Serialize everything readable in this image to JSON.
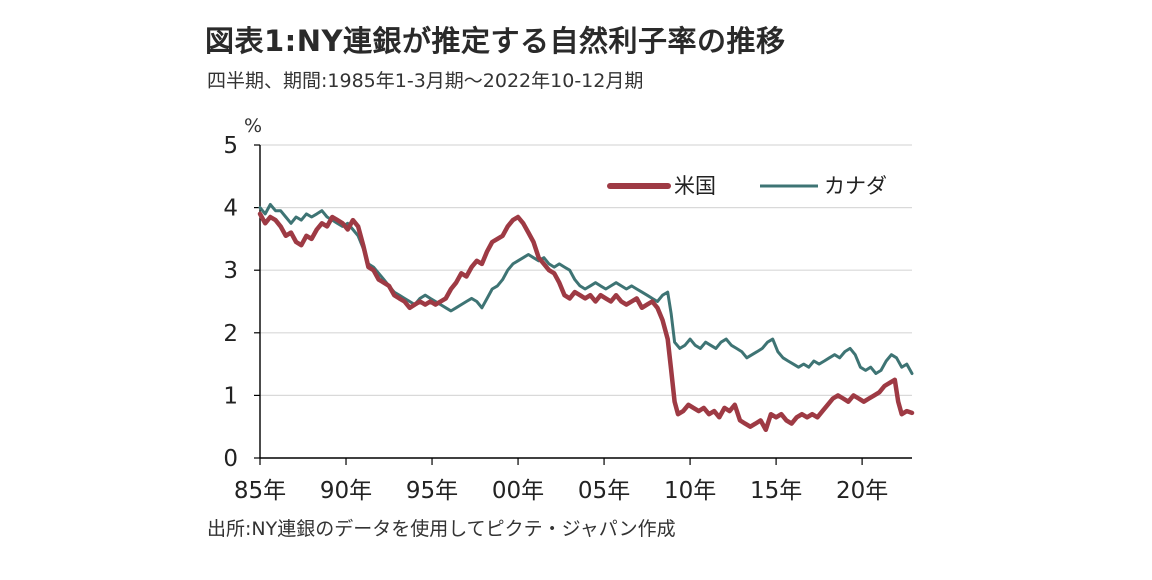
{
  "header": {
    "title": "図表1:NY連銀が推定する自然利子率の推移",
    "subtitle": "四半期、期間:1985年1-3月期～2022年10-12月期"
  },
  "footer": {
    "source": "出所:NY連銀のデータを使用してピクテ・ジャパン作成"
  },
  "colors": {
    "us": "#9e3a44",
    "canada": "#3e7474",
    "grid": "#d9d9d9",
    "axis": "#000000"
  },
  "chart_data": {
    "type": "line",
    "ylabel": "%",
    "ylim": [
      0,
      5
    ],
    "yticks": [
      "0",
      "1",
      "2",
      "3",
      "4",
      "5"
    ],
    "xlim": [
      1985,
      2022.9
    ],
    "xticks": [
      {
        "value": 1985,
        "label": "85年"
      },
      {
        "value": 1990,
        "label": "90年"
      },
      {
        "value": 1995,
        "label": "95年"
      },
      {
        "value": 2000,
        "label": "00年"
      },
      {
        "value": 2005,
        "label": "05年"
      },
      {
        "value": 2010,
        "label": "10年"
      },
      {
        "value": 2015,
        "label": "15年"
      },
      {
        "value": 2020,
        "label": "20年"
      }
    ],
    "grid": "horizontal",
    "legend_position": "top-right",
    "series": [
      {
        "name": "米国",
        "color": "#9e3a44",
        "points": [
          [
            1985.0,
            3.9
          ],
          [
            1985.3,
            3.75
          ],
          [
            1985.6,
            3.85
          ],
          [
            1985.9,
            3.8
          ],
          [
            1986.2,
            3.7
          ],
          [
            1986.5,
            3.55
          ],
          [
            1986.8,
            3.6
          ],
          [
            1987.1,
            3.45
          ],
          [
            1987.4,
            3.4
          ],
          [
            1987.7,
            3.55
          ],
          [
            1988.0,
            3.5
          ],
          [
            1988.3,
            3.65
          ],
          [
            1988.6,
            3.75
          ],
          [
            1988.9,
            3.7
          ],
          [
            1989.2,
            3.85
          ],
          [
            1989.5,
            3.8
          ],
          [
            1989.8,
            3.75
          ],
          [
            1990.1,
            3.65
          ],
          [
            1990.4,
            3.8
          ],
          [
            1990.7,
            3.7
          ],
          [
            1991.0,
            3.4
          ],
          [
            1991.3,
            3.05
          ],
          [
            1991.6,
            3.0
          ],
          [
            1991.9,
            2.85
          ],
          [
            1992.2,
            2.8
          ],
          [
            1992.5,
            2.75
          ],
          [
            1992.8,
            2.6
          ],
          [
            1993.1,
            2.55
          ],
          [
            1993.4,
            2.5
          ],
          [
            1993.7,
            2.4
          ],
          [
            1994.0,
            2.45
          ],
          [
            1994.3,
            2.5
          ],
          [
            1994.6,
            2.45
          ],
          [
            1994.9,
            2.5
          ],
          [
            1995.2,
            2.45
          ],
          [
            1995.5,
            2.5
          ],
          [
            1995.8,
            2.55
          ],
          [
            1996.1,
            2.7
          ],
          [
            1996.4,
            2.8
          ],
          [
            1996.7,
            2.95
          ],
          [
            1997.0,
            2.9
          ],
          [
            1997.3,
            3.05
          ],
          [
            1997.6,
            3.15
          ],
          [
            1997.9,
            3.1
          ],
          [
            1998.2,
            3.3
          ],
          [
            1998.5,
            3.45
          ],
          [
            1998.8,
            3.5
          ],
          [
            1999.1,
            3.55
          ],
          [
            1999.4,
            3.7
          ],
          [
            1999.7,
            3.8
          ],
          [
            2000.0,
            3.85
          ],
          [
            2000.3,
            3.75
          ],
          [
            2000.6,
            3.6
          ],
          [
            2000.9,
            3.45
          ],
          [
            2001.2,
            3.2
          ],
          [
            2001.5,
            3.1
          ],
          [
            2001.8,
            3.0
          ],
          [
            2002.1,
            2.95
          ],
          [
            2002.4,
            2.8
          ],
          [
            2002.7,
            2.6
          ],
          [
            2003.0,
            2.55
          ],
          [
            2003.3,
            2.65
          ],
          [
            2003.6,
            2.6
          ],
          [
            2003.9,
            2.55
          ],
          [
            2004.2,
            2.6
          ],
          [
            2004.5,
            2.5
          ],
          [
            2004.8,
            2.6
          ],
          [
            2005.1,
            2.55
          ],
          [
            2005.4,
            2.5
          ],
          [
            2005.7,
            2.6
          ],
          [
            2006.0,
            2.5
          ],
          [
            2006.3,
            2.45
          ],
          [
            2006.6,
            2.5
          ],
          [
            2006.9,
            2.55
          ],
          [
            2007.2,
            2.4
          ],
          [
            2007.5,
            2.45
          ],
          [
            2007.8,
            2.5
          ],
          [
            2008.1,
            2.4
          ],
          [
            2008.4,
            2.2
          ],
          [
            2008.7,
            1.9
          ],
          [
            2008.9,
            1.4
          ],
          [
            2009.1,
            0.9
          ],
          [
            2009.3,
            0.7
          ],
          [
            2009.6,
            0.75
          ],
          [
            2009.9,
            0.85
          ],
          [
            2010.2,
            0.8
          ],
          [
            2010.5,
            0.75
          ],
          [
            2010.8,
            0.8
          ],
          [
            2011.1,
            0.7
          ],
          [
            2011.4,
            0.75
          ],
          [
            2011.7,
            0.65
          ],
          [
            2012.0,
            0.8
          ],
          [
            2012.3,
            0.75
          ],
          [
            2012.6,
            0.85
          ],
          [
            2012.9,
            0.6
          ],
          [
            2013.2,
            0.55
          ],
          [
            2013.5,
            0.5
          ],
          [
            2013.8,
            0.55
          ],
          [
            2014.1,
            0.6
          ],
          [
            2014.4,
            0.45
          ],
          [
            2014.7,
            0.7
          ],
          [
            2015.0,
            0.65
          ],
          [
            2015.3,
            0.7
          ],
          [
            2015.6,
            0.6
          ],
          [
            2015.9,
            0.55
          ],
          [
            2016.2,
            0.65
          ],
          [
            2016.5,
            0.7
          ],
          [
            2016.8,
            0.65
          ],
          [
            2017.1,
            0.7
          ],
          [
            2017.4,
            0.65
          ],
          [
            2017.7,
            0.75
          ],
          [
            2018.0,
            0.85
          ],
          [
            2018.3,
            0.95
          ],
          [
            2018.6,
            1.0
          ],
          [
            2018.9,
            0.95
          ],
          [
            2019.2,
            0.9
          ],
          [
            2019.5,
            1.0
          ],
          [
            2019.8,
            0.95
          ],
          [
            2020.1,
            0.9
          ],
          [
            2020.4,
            0.95
          ],
          [
            2020.7,
            1.0
          ],
          [
            2021.0,
            1.05
          ],
          [
            2021.3,
            1.15
          ],
          [
            2021.6,
            1.2
          ],
          [
            2021.9,
            1.25
          ],
          [
            2022.1,
            0.9
          ],
          [
            2022.3,
            0.7
          ],
          [
            2022.6,
            0.75
          ],
          [
            2022.9,
            0.72
          ]
        ]
      },
      {
        "name": "カナダ",
        "color": "#3e7474",
        "points": [
          [
            1985.0,
            4.0
          ],
          [
            1985.3,
            3.9
          ],
          [
            1985.6,
            4.05
          ],
          [
            1985.9,
            3.95
          ],
          [
            1986.2,
            3.95
          ],
          [
            1986.5,
            3.85
          ],
          [
            1986.8,
            3.75
          ],
          [
            1987.1,
            3.85
          ],
          [
            1987.4,
            3.8
          ],
          [
            1987.7,
            3.9
          ],
          [
            1988.0,
            3.85
          ],
          [
            1988.3,
            3.9
          ],
          [
            1988.6,
            3.95
          ],
          [
            1988.9,
            3.85
          ],
          [
            1989.2,
            3.8
          ],
          [
            1989.5,
            3.75
          ],
          [
            1989.8,
            3.7
          ],
          [
            1990.1,
            3.75
          ],
          [
            1990.4,
            3.65
          ],
          [
            1990.7,
            3.55
          ],
          [
            1991.0,
            3.35
          ],
          [
            1991.3,
            3.1
          ],
          [
            1991.6,
            3.05
          ],
          [
            1991.9,
            2.95
          ],
          [
            1992.2,
            2.85
          ],
          [
            1992.5,
            2.75
          ],
          [
            1992.8,
            2.65
          ],
          [
            1993.1,
            2.6
          ],
          [
            1993.4,
            2.55
          ],
          [
            1993.7,
            2.5
          ],
          [
            1994.0,
            2.45
          ],
          [
            1994.3,
            2.55
          ],
          [
            1994.6,
            2.6
          ],
          [
            1994.9,
            2.55
          ],
          [
            1995.2,
            2.5
          ],
          [
            1995.5,
            2.45
          ],
          [
            1995.8,
            2.4
          ],
          [
            1996.1,
            2.35
          ],
          [
            1996.4,
            2.4
          ],
          [
            1996.7,
            2.45
          ],
          [
            1997.0,
            2.5
          ],
          [
            1997.3,
            2.55
          ],
          [
            1997.6,
            2.5
          ],
          [
            1997.9,
            2.4
          ],
          [
            1998.2,
            2.55
          ],
          [
            1998.5,
            2.7
          ],
          [
            1998.8,
            2.75
          ],
          [
            1999.1,
            2.85
          ],
          [
            1999.4,
            3.0
          ],
          [
            1999.7,
            3.1
          ],
          [
            2000.0,
            3.15
          ],
          [
            2000.3,
            3.2
          ],
          [
            2000.6,
            3.25
          ],
          [
            2000.9,
            3.2
          ],
          [
            2001.2,
            3.15
          ],
          [
            2001.5,
            3.2
          ],
          [
            2001.8,
            3.1
          ],
          [
            2002.1,
            3.05
          ],
          [
            2002.4,
            3.1
          ],
          [
            2002.7,
            3.05
          ],
          [
            2003.0,
            3.0
          ],
          [
            2003.3,
            2.85
          ],
          [
            2003.6,
            2.75
          ],
          [
            2003.9,
            2.7
          ],
          [
            2004.2,
            2.75
          ],
          [
            2004.5,
            2.8
          ],
          [
            2004.8,
            2.75
          ],
          [
            2005.1,
            2.7
          ],
          [
            2005.4,
            2.75
          ],
          [
            2005.7,
            2.8
          ],
          [
            2006.0,
            2.75
          ],
          [
            2006.3,
            2.7
          ],
          [
            2006.6,
            2.75
          ],
          [
            2006.9,
            2.7
          ],
          [
            2007.2,
            2.65
          ],
          [
            2007.5,
            2.6
          ],
          [
            2007.8,
            2.55
          ],
          [
            2008.1,
            2.5
          ],
          [
            2008.4,
            2.6
          ],
          [
            2008.7,
            2.65
          ],
          [
            2008.9,
            2.3
          ],
          [
            2009.1,
            1.85
          ],
          [
            2009.4,
            1.75
          ],
          [
            2009.7,
            1.8
          ],
          [
            2010.0,
            1.9
          ],
          [
            2010.3,
            1.8
          ],
          [
            2010.6,
            1.75
          ],
          [
            2010.9,
            1.85
          ],
          [
            2011.2,
            1.8
          ],
          [
            2011.5,
            1.75
          ],
          [
            2011.8,
            1.85
          ],
          [
            2012.1,
            1.9
          ],
          [
            2012.4,
            1.8
          ],
          [
            2012.7,
            1.75
          ],
          [
            2013.0,
            1.7
          ],
          [
            2013.3,
            1.6
          ],
          [
            2013.6,
            1.65
          ],
          [
            2013.9,
            1.7
          ],
          [
            2014.2,
            1.75
          ],
          [
            2014.5,
            1.85
          ],
          [
            2014.8,
            1.9
          ],
          [
            2015.1,
            1.7
          ],
          [
            2015.4,
            1.6
          ],
          [
            2015.7,
            1.55
          ],
          [
            2016.0,
            1.5
          ],
          [
            2016.3,
            1.45
          ],
          [
            2016.6,
            1.5
          ],
          [
            2016.9,
            1.45
          ],
          [
            2017.2,
            1.55
          ],
          [
            2017.5,
            1.5
          ],
          [
            2017.8,
            1.55
          ],
          [
            2018.1,
            1.6
          ],
          [
            2018.4,
            1.65
          ],
          [
            2018.7,
            1.6
          ],
          [
            2019.0,
            1.7
          ],
          [
            2019.3,
            1.75
          ],
          [
            2019.6,
            1.65
          ],
          [
            2019.9,
            1.45
          ],
          [
            2020.2,
            1.4
          ],
          [
            2020.5,
            1.45
          ],
          [
            2020.8,
            1.35
          ],
          [
            2021.1,
            1.4
          ],
          [
            2021.4,
            1.55
          ],
          [
            2021.7,
            1.65
          ],
          [
            2022.0,
            1.6
          ],
          [
            2022.3,
            1.45
          ],
          [
            2022.6,
            1.5
          ],
          [
            2022.9,
            1.35
          ]
        ]
      }
    ]
  }
}
